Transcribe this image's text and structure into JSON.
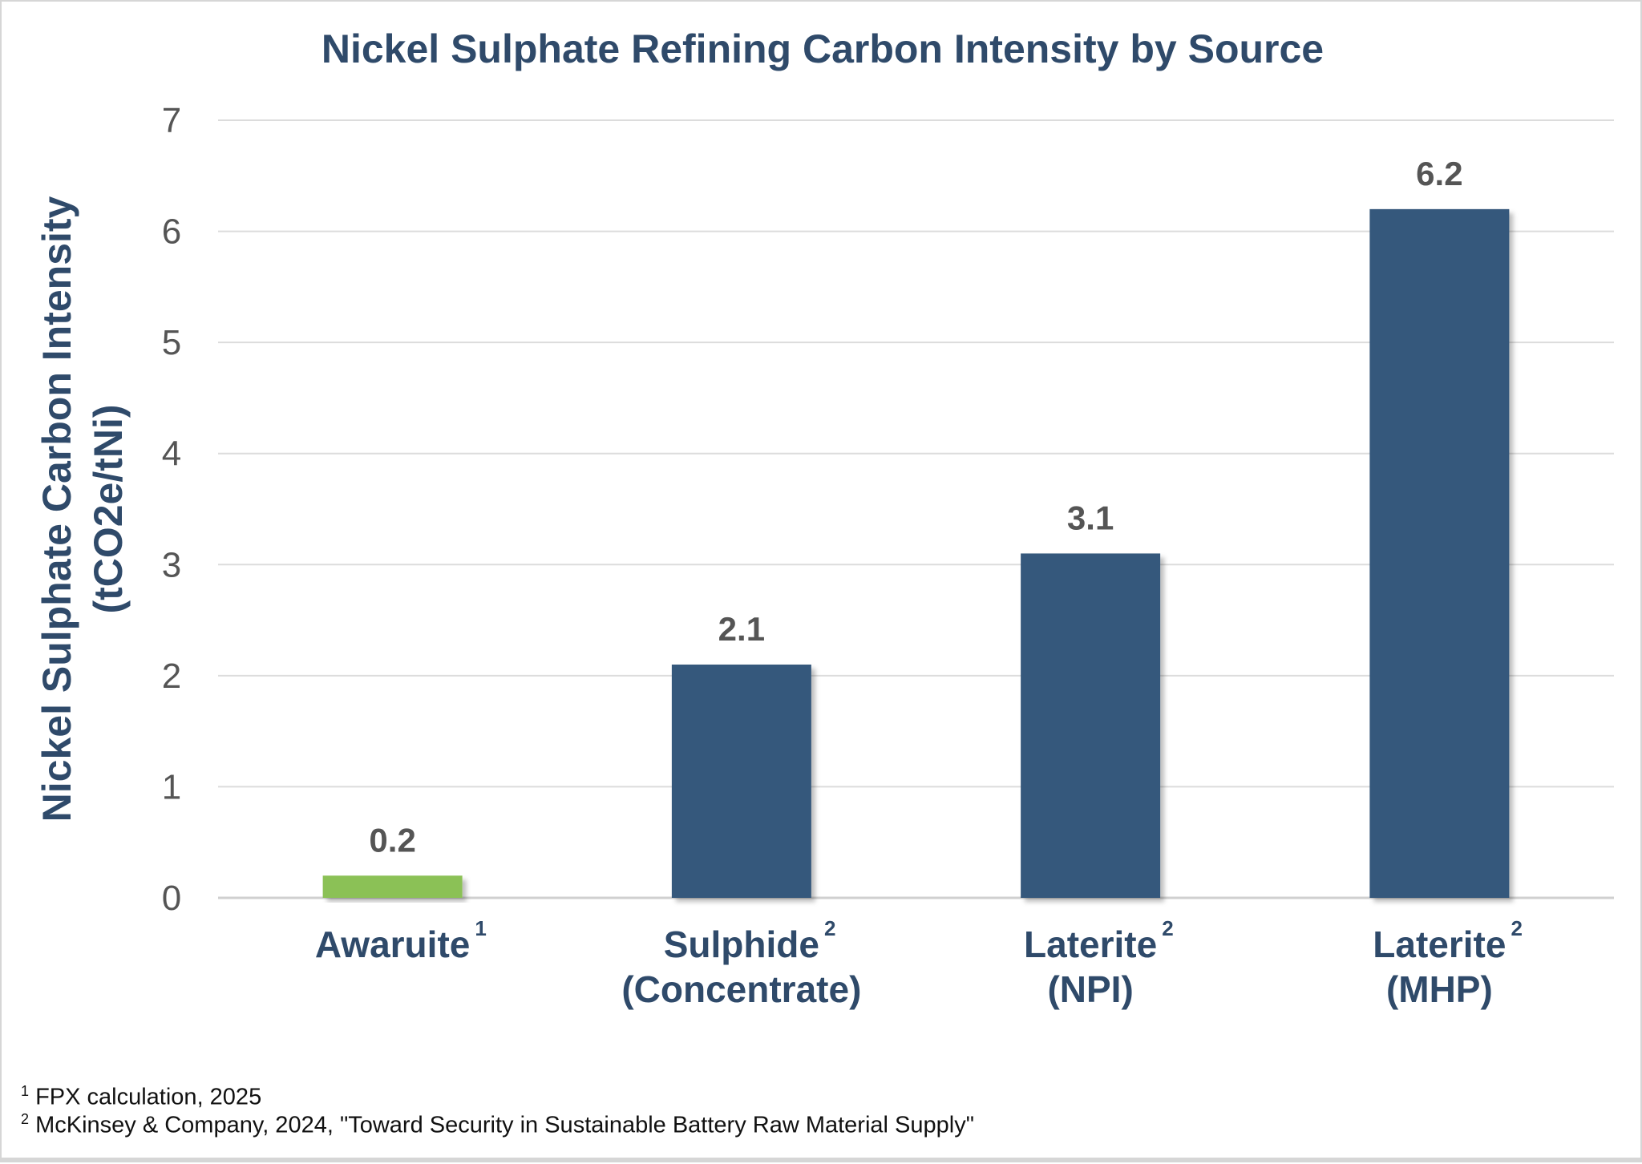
{
  "chart_data": {
    "type": "bar",
    "title": "Nickel Sulphate Refining Carbon Intensity by Source",
    "ylabel_lines": [
      "Nickel Sulphate Carbon Intensity",
      "(tCO2e/tNi)"
    ],
    "xlabel": "",
    "ylim": [
      0,
      7
    ],
    "yticks": [
      0,
      1,
      2,
      3,
      4,
      5,
      6,
      7
    ],
    "grid": true,
    "categories": [
      {
        "lines": [
          "Awaruite"
        ],
        "superscript": "1"
      },
      {
        "lines": [
          "Sulphide",
          "(Concentrate)"
        ],
        "superscript": "2"
      },
      {
        "lines": [
          "Laterite",
          "(NPI)"
        ],
        "superscript": "2"
      },
      {
        "lines": [
          "Laterite",
          "(MHP)"
        ],
        "superscript": "2"
      }
    ],
    "values": [
      0.2,
      2.1,
      3.1,
      6.2
    ],
    "data_labels": [
      "0.2",
      "2.1",
      "3.1",
      "6.2"
    ],
    "colors": [
      "#8bc157",
      "#35597b",
      "#35597b",
      "#35597b"
    ]
  },
  "footnotes": [
    {
      "marker": "1",
      "text": "FPX calculation, 2025"
    },
    {
      "marker": "2",
      "text": "McKinsey & Company, 2024, \"Toward Security in Sustainable Battery Raw Material Supply\""
    }
  ]
}
